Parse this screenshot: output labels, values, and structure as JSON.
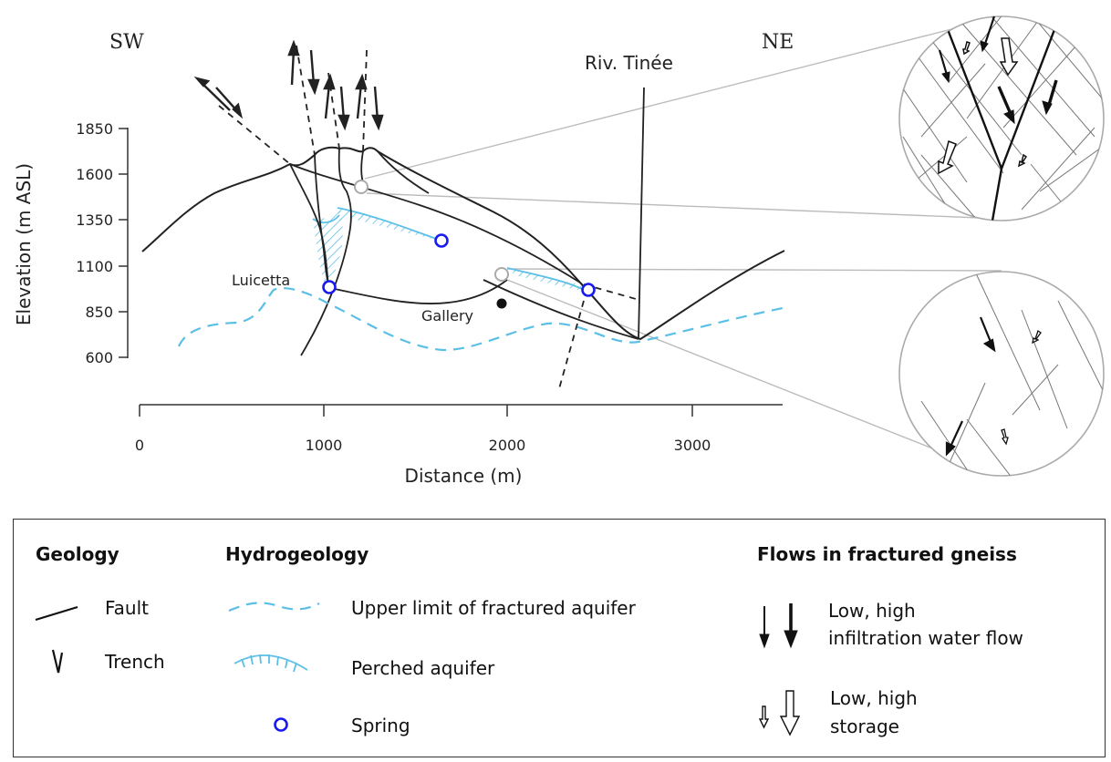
{
  "section": {
    "sw_label": "SW",
    "ne_label": "NE",
    "river_label": "Riv. Tinée",
    "luicetta_label": "Luicetta",
    "gallery_label": "Gallery"
  },
  "axes": {
    "ylabel": "Elevation (m ASL)",
    "xlabel": "Distance (m)",
    "yticks": [
      "1850",
      "1600",
      "1350",
      "1100",
      "850",
      "600"
    ],
    "xticks": [
      "0",
      "1000",
      "2000",
      "3000"
    ]
  },
  "legend": {
    "geology_title": "Geology",
    "fault_label": "Fault",
    "trench_label": "Trench",
    "hydro_title": "Hydrogeology",
    "upper_limit_label": "Upper limit of fractured aquifer",
    "perched_label": "Perched aquifer",
    "spring_label": "Spring",
    "flows_title": "Flows in fractured gneiss",
    "infiltration_line1": "Low, high",
    "infiltration_line2": "infiltration water flow",
    "storage_line1": "Low, high",
    "storage_line2": "storage"
  },
  "colors": {
    "aquifer": "#5bbfe6",
    "spring": "#1a1aee",
    "line": "#222222"
  }
}
